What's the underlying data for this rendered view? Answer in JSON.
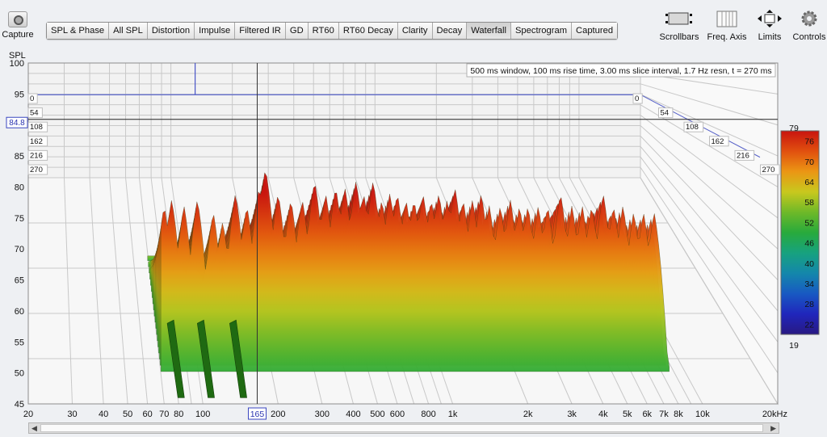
{
  "toolbar": {
    "capture_label": "Capture",
    "tabs": [
      {
        "label": "SPL & Phase",
        "active": false
      },
      {
        "label": "All SPL",
        "active": false
      },
      {
        "label": "Distortion",
        "active": false
      },
      {
        "label": "Impulse",
        "active": false
      },
      {
        "label": "Filtered IR",
        "active": false
      },
      {
        "label": "GD",
        "active": false
      },
      {
        "label": "RT60",
        "active": false
      },
      {
        "label": "RT60 Decay",
        "active": false
      },
      {
        "label": "Clarity",
        "active": false
      },
      {
        "label": "Decay",
        "active": false
      },
      {
        "label": "Waterfall",
        "active": true
      },
      {
        "label": "Spectrogram",
        "active": false
      },
      {
        "label": "Captured",
        "active": false
      }
    ],
    "tools": [
      {
        "label": "Scrollbars",
        "icon": "scrollbars-icon"
      },
      {
        "label": "Freq. Axis",
        "icon": "freq-axis-icon"
      },
      {
        "label": "Limits",
        "icon": "limits-icon"
      },
      {
        "label": "Controls",
        "icon": "gear-icon"
      }
    ]
  },
  "chart_data": {
    "type": "waterfall",
    "info": "500 ms window, 100 ms rise time, 3.00 ms slice interval, 1.7 Hz resn, t = 270 ms",
    "y_axis_label": "SPL",
    "y_ticks": [
      45,
      50,
      55,
      60,
      65,
      70,
      75,
      80,
      85,
      90,
      95,
      100
    ],
    "ylim": [
      45,
      100
    ],
    "x_ticks": [
      "20",
      "30",
      "40",
      "50",
      "60",
      "70",
      "80",
      "100",
      "200",
      "300",
      "400",
      "500",
      "600",
      "800",
      "1k",
      "2k",
      "3k",
      "4k",
      "5k",
      "6k",
      "7k",
      "8k",
      "10k",
      "20kHz"
    ],
    "x_tick_values": [
      20,
      30,
      40,
      50,
      60,
      70,
      80,
      100,
      200,
      300,
      400,
      500,
      600,
      800,
      1000,
      2000,
      3000,
      4000,
      5000,
      6000,
      7000,
      8000,
      10000,
      20000
    ],
    "xlim": [
      20,
      20000
    ],
    "time_labels": [
      "0",
      "54",
      "108",
      "162",
      "216",
      "270"
    ],
    "time_unit": "ms",
    "cursor": {
      "spl_readout": "84.8",
      "freq_readout": "165",
      "spl": 84.8,
      "freq": 165
    },
    "marker_freq": 100,
    "color_scale": {
      "ticks": [
        79,
        76,
        70,
        64,
        58,
        52,
        46,
        40,
        34,
        28,
        22,
        19
      ],
      "min": 19,
      "max": 79
    },
    "peaks": [
      {
        "f": 70,
        "spl": 77
      },
      {
        "f": 75,
        "spl": 78
      },
      {
        "f": 84,
        "spl": 77
      },
      {
        "f": 95,
        "spl": 78
      },
      {
        "f": 110,
        "spl": 76
      },
      {
        "f": 120,
        "spl": 74.5
      },
      {
        "f": 135,
        "spl": 79
      },
      {
        "f": 150,
        "spl": 77
      },
      {
        "f": 168,
        "spl": 80
      },
      {
        "f": 178,
        "spl": 83
      },
      {
        "f": 200,
        "spl": 79
      },
      {
        "f": 225,
        "spl": 78
      },
      {
        "f": 250,
        "spl": 78
      },
      {
        "f": 280,
        "spl": 81
      },
      {
        "f": 310,
        "spl": 79
      },
      {
        "f": 340,
        "spl": 80
      },
      {
        "f": 370,
        "spl": 80
      },
      {
        "f": 410,
        "spl": 81
      },
      {
        "f": 440,
        "spl": 79
      },
      {
        "f": 480,
        "spl": 81
      },
      {
        "f": 520,
        "spl": 78
      },
      {
        "f": 560,
        "spl": 79
      },
      {
        "f": 600,
        "spl": 79
      },
      {
        "f": 650,
        "spl": 78
      },
      {
        "f": 700,
        "spl": 78
      },
      {
        "f": 760,
        "spl": 79
      },
      {
        "f": 820,
        "spl": 78
      },
      {
        "f": 880,
        "spl": 79
      },
      {
        "f": 950,
        "spl": 78
      },
      {
        "f": 1020,
        "spl": 80
      },
      {
        "f": 1100,
        "spl": 78
      },
      {
        "f": 1200,
        "spl": 78
      },
      {
        "f": 1300,
        "spl": 79
      },
      {
        "f": 1400,
        "spl": 77
      },
      {
        "f": 1550,
        "spl": 77
      },
      {
        "f": 1700,
        "spl": 78
      },
      {
        "f": 1850,
        "spl": 77
      },
      {
        "f": 2000,
        "spl": 77
      },
      {
        "f": 2200,
        "spl": 77
      },
      {
        "f": 2400,
        "spl": 77
      },
      {
        "f": 2700,
        "spl": 79
      },
      {
        "f": 3000,
        "spl": 77
      },
      {
        "f": 3300,
        "spl": 77
      },
      {
        "f": 3600,
        "spl": 77
      },
      {
        "f": 4000,
        "spl": 79
      },
      {
        "f": 4400,
        "spl": 77
      },
      {
        "f": 4800,
        "spl": 77
      },
      {
        "f": 5300,
        "spl": 76
      },
      {
        "f": 5800,
        "spl": 76
      },
      {
        "f": 6400,
        "spl": 76
      }
    ],
    "floor_spl": 51
  }
}
